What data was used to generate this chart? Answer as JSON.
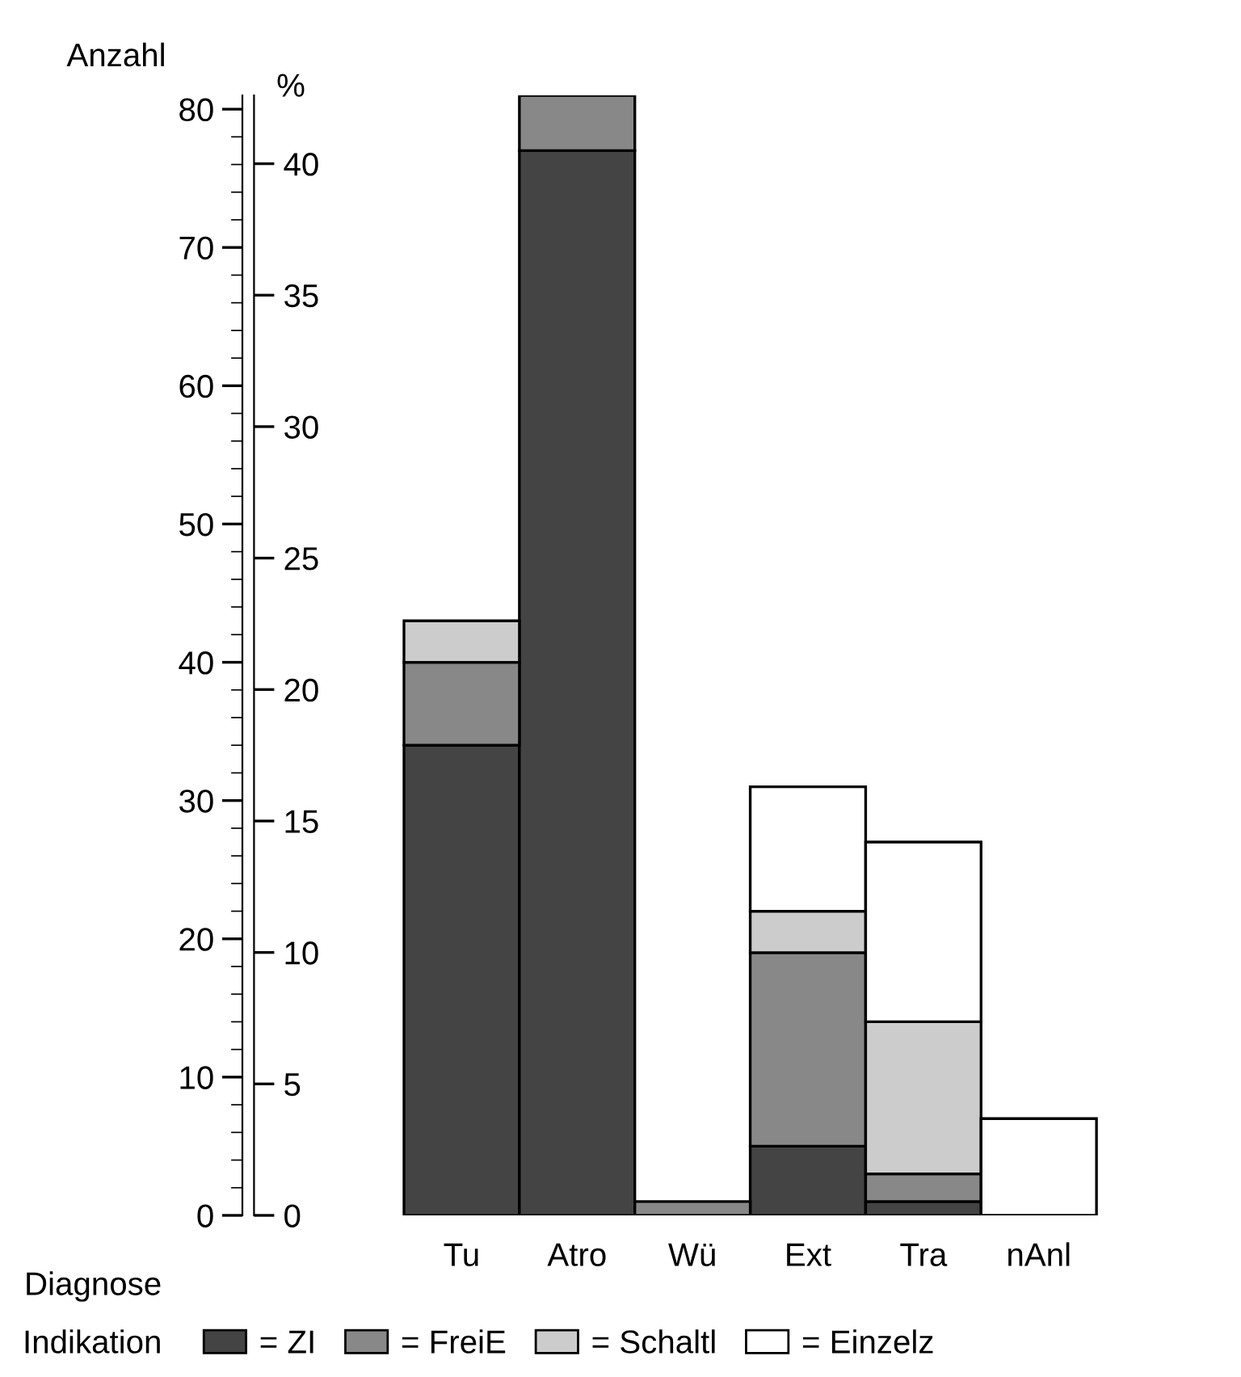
{
  "chart_data": {
    "type": "bar",
    "stacked": true,
    "ylabel": "Anzahl",
    "y2label": "%",
    "xlabel": "Diagnose",
    "legend_title": "Indikation",
    "categories": [
      "Tu",
      "Atro",
      "Wü",
      "Ext",
      "Tra",
      "nAnl"
    ],
    "series": [
      {
        "name": "= ZI",
        "color": "#444444",
        "values": [
          34,
          77,
          0,
          5,
          1,
          0
        ]
      },
      {
        "name": "= FreiE",
        "color": "#888888",
        "values": [
          6,
          4,
          1,
          14,
          2,
          0
        ]
      },
      {
        "name": "= Schaltl",
        "color": "#cccccc",
        "values": [
          3,
          0,
          0,
          3,
          11,
          0
        ]
      },
      {
        "name": "= Einzelz",
        "color": "#ffffff",
        "values": [
          null,
          0,
          0,
          9,
          13,
          7
        ]
      }
    ],
    "ylim": [
      0,
      81
    ],
    "yticks": [
      0,
      10,
      20,
      30,
      40,
      50,
      60,
      70,
      80
    ],
    "y2lim": [
      0,
      42.6
    ],
    "y2ticks": [
      0,
      5,
      10,
      15,
      20,
      25,
      30,
      35,
      40
    ],
    "grid": false,
    "legend": "bottom"
  }
}
